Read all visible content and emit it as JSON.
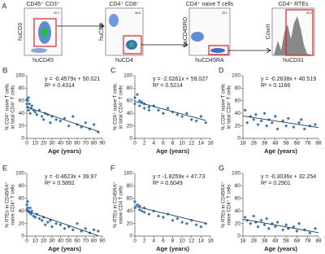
{
  "panel_a": {
    "letter": "A",
    "plots": [
      {
        "title": "CD45⁺ CD3⁺",
        "ylabel": "huCD3",
        "xlabel": "huCD45",
        "gate": "92.1"
      },
      {
        "title": "CD4⁺ CD8⁻",
        "ylabel": "huCD8",
        "xlabel": "huCD4",
        "gate": "66.6"
      },
      {
        "title": "CD4⁺ naive T cells",
        "ylabel": "huCD45RO",
        "xlabel": "huCD45RA",
        "gate": "25.1"
      },
      {
        "title": "CD4⁺ RTEs",
        "ylabel": "Count",
        "xlabel": "huCD31",
        "gate": "63.4"
      }
    ]
  },
  "chart_data": [
    {
      "type": "scatter",
      "panel": "B",
      "ylabel": [
        "% CD4⁺ naive T cells",
        "in total CD4⁺ T cells"
      ],
      "xlabel": "Age (years)",
      "equation": "y = -0.4579x + 50.021",
      "r2": "R² = 0.4314",
      "color": "#2e75b6",
      "x": [
        0,
        0,
        1,
        1,
        2,
        2,
        3,
        4,
        5,
        6,
        8,
        10,
        12,
        15,
        18,
        20,
        22,
        25,
        28,
        30,
        35,
        40,
        45,
        50,
        55,
        60,
        65,
        70,
        75,
        80,
        85
      ],
      "values": [
        62,
        55,
        60,
        50,
        65,
        45,
        55,
        40,
        48,
        52,
        45,
        42,
        38,
        45,
        35,
        30,
        40,
        38,
        25,
        35,
        30,
        28,
        32,
        20,
        35,
        22,
        18,
        25,
        15,
        22,
        10
      ],
      "trend": {
        "x": [
          0,
          85
        ],
        "values": [
          50.0,
          11.1
        ],
        "color": "#1f3b5c"
      },
      "xlim": [
        0,
        90
      ],
      "xticks": [
        0,
        10,
        20,
        30,
        40,
        50,
        60,
        70,
        80,
        90
      ],
      "ylim": [
        0,
        100
      ],
      "yticks": [
        0,
        20,
        40,
        60,
        80,
        100
      ]
    },
    {
      "type": "scatter",
      "panel": "C",
      "ylabel": [
        "% CD4⁺ naive T cells",
        "in total CD4⁺ T cells"
      ],
      "xlabel": "Age (years)",
      "equation": "y = -2.0261x + 59.027",
      "r2": "R² = 0.5214",
      "color": "#2e75b6",
      "x": [
        0,
        0,
        0.5,
        1,
        1,
        1.5,
        2,
        2,
        3,
        3,
        4,
        5,
        6,
        7,
        8,
        9,
        10,
        11,
        12,
        13,
        14,
        15
      ],
      "values": [
        65,
        55,
        70,
        60,
        52,
        58,
        48,
        55,
        50,
        45,
        52,
        45,
        40,
        48,
        42,
        38,
        35,
        40,
        30,
        28,
        35,
        25
      ],
      "trend": {
        "x": [
          0,
          15
        ],
        "values": [
          59.0,
          28.6
        ],
        "color": "#1f3b5c"
      },
      "xlim": [
        0,
        16
      ],
      "xticks": [
        0,
        2,
        4,
        6,
        8,
        10,
        12,
        14,
        16
      ],
      "ylim": [
        0,
        100
      ],
      "yticks": [
        0,
        20,
        40,
        60,
        80,
        100
      ]
    },
    {
      "type": "scatter",
      "panel": "D",
      "ylabel": [
        "% CD4⁺ naive T cells",
        "in total CD4⁺ T cells"
      ],
      "xlabel": "Age (years)",
      "equation": "y = -0.2638x + 40.519",
      "r2": "R² = 0.1166",
      "color": "#2e75b6",
      "x": [
        20,
        22,
        25,
        28,
        30,
        32,
        35,
        38,
        40,
        42,
        45,
        48,
        50,
        55,
        58,
        60,
        65,
        70,
        72,
        75,
        80,
        85
      ],
      "values": [
        45,
        25,
        35,
        30,
        38,
        22,
        28,
        40,
        20,
        30,
        25,
        35,
        15,
        28,
        20,
        32,
        18,
        25,
        30,
        15,
        20,
        22
      ],
      "trend": {
        "x": [
          18,
          88
        ],
        "values": [
          35.8,
          17.3
        ],
        "color": "#1f3b5c"
      },
      "xlim": [
        18,
        88
      ],
      "xticks": [
        18,
        28,
        38,
        48,
        58,
        68,
        78,
        88
      ],
      "ylim": [
        0,
        100
      ],
      "yticks": [
        0,
        20,
        40,
        60,
        80,
        100
      ]
    },
    {
      "type": "scatter",
      "panel": "E",
      "ylabel": [
        "% RTEs in CD45RA⁺",
        "naive CD4⁺ T cells"
      ],
      "xlabel": "Age (years)",
      "equation": "y = -0.4623x + 39.97",
      "r2": "R² = 0.5892",
      "color": "#2e75b6",
      "x": [
        0,
        0,
        1,
        1,
        2,
        3,
        4,
        5,
        6,
        8,
        10,
        12,
        15,
        18,
        20,
        22,
        25,
        28,
        30,
        35,
        40,
        45,
        50,
        55,
        60,
        65,
        70,
        75,
        80,
        85
      ],
      "values": [
        50,
        42,
        45,
        55,
        40,
        38,
        45,
        35,
        40,
        32,
        30,
        35,
        28,
        25,
        30,
        18,
        22,
        25,
        15,
        20,
        18,
        12,
        15,
        10,
        20,
        8,
        12,
        5,
        10,
        8
      ],
      "trend": {
        "x": [
          0,
          85
        ],
        "values": [
          40.0,
          0.7
        ],
        "color": "#1f3b5c"
      },
      "xlim": [
        0,
        90
      ],
      "xticks": [
        0,
        10,
        20,
        30,
        40,
        50,
        60,
        70,
        80,
        90
      ],
      "ylim": [
        0,
        100
      ],
      "yticks": [
        0,
        20,
        40,
        60,
        80,
        100
      ]
    },
    {
      "type": "scatter",
      "panel": "F",
      "ylabel": [
        "% RTEs in CD45RA⁺",
        "naive CD4 T cells"
      ],
      "xlabel": "Age (years)",
      "equation": "y = -1.8259x + 47.73",
      "r2": "R² = 0.6049",
      "color": "#2e75b6",
      "x": [
        0,
        0,
        0.5,
        1,
        1,
        1.5,
        2,
        2,
        3,
        4,
        5,
        6,
        7,
        8,
        9,
        10,
        11,
        12,
        13,
        14,
        15
      ],
      "values": [
        55,
        45,
        50,
        42,
        48,
        40,
        38,
        45,
        35,
        40,
        32,
        30,
        35,
        25,
        28,
        22,
        20,
        25,
        18,
        15,
        20
      ],
      "trend": {
        "x": [
          0,
          15
        ],
        "values": [
          47.7,
          20.3
        ],
        "color": "#1f3b5c"
      },
      "xlim": [
        0,
        16
      ],
      "xticks": [
        0,
        2,
        4,
        6,
        8,
        10,
        12,
        14,
        16
      ],
      "ylim": [
        0,
        100
      ],
      "yticks": [
        0,
        20,
        40,
        60,
        80,
        100
      ]
    },
    {
      "type": "scatter",
      "panel": "G",
      "ylabel": [
        "% RTEs in CD45RA⁺",
        "naive CD4⁺ T cells"
      ],
      "xlabel": "Age (years)",
      "equation": "y = -0.3036x + 32.254",
      "r2": "R² = 0.2901",
      "color": "#2e75b6",
      "x": [
        20,
        22,
        25,
        28,
        30,
        32,
        35,
        38,
        40,
        42,
        45,
        48,
        50,
        55,
        58,
        60,
        65,
        68,
        70,
        75,
        80,
        85
      ],
      "values": [
        30,
        25,
        20,
        32,
        22,
        15,
        25,
        18,
        28,
        12,
        20,
        15,
        22,
        10,
        18,
        12,
        15,
        8,
        20,
        10,
        5,
        12
      ],
      "trend": {
        "x": [
          18,
          88
        ],
        "values": [
          26.8,
          5.5
        ],
        "color": "#1f3b5c"
      },
      "xlim": [
        18,
        88
      ],
      "xticks": [
        18,
        28,
        38,
        48,
        58,
        68,
        78,
        88
      ],
      "ylim": [
        0,
        100
      ],
      "yticks": [
        0,
        20,
        40,
        60,
        80,
        100
      ]
    }
  ]
}
